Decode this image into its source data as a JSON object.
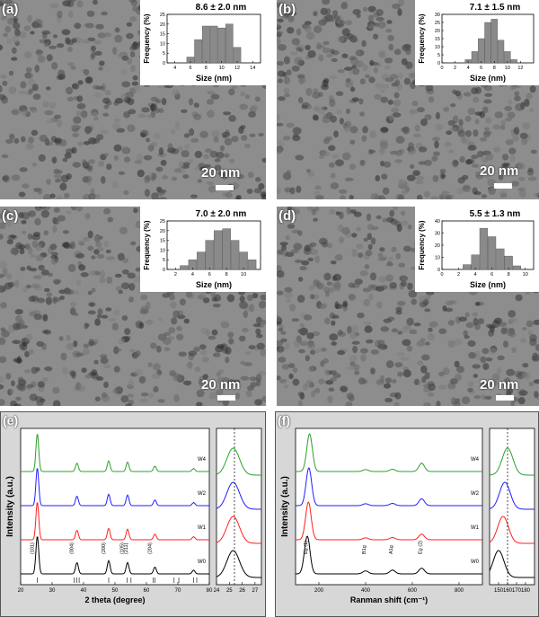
{
  "panels": [
    {
      "label": "(a)",
      "scale": "20 nm",
      "mean_label": "8.6 ± 2.0 nm"
    },
    {
      "label": "(b)",
      "scale": "20 nm",
      "mean_label": "7.1 ± 1.5 nm"
    },
    {
      "label": "(c)",
      "scale": "20 nm",
      "mean_label": "7.0 ± 2.0 nm"
    },
    {
      "label": "(d)",
      "scale": "20 nm",
      "mean_label": "5.5 ± 1.3 nm"
    },
    {
      "label": "(e)"
    },
    {
      "label": "(f)"
    }
  ],
  "chart_data": [
    {
      "type": "bar",
      "panel": "(a)",
      "title": "8.6 ± 2.0 nm",
      "xlabel": "Size (nm)",
      "ylabel": "Frequency (%)",
      "x": [
        6,
        7,
        8,
        9,
        10,
        11,
        12
      ],
      "values": [
        3,
        12,
        19,
        19,
        18,
        20,
        8
      ],
      "xlim": [
        3,
        15
      ],
      "ylim": [
        0,
        25
      ],
      "xticks": [
        "4",
        "6",
        "8",
        "10",
        "12",
        "14"
      ],
      "yticks": [
        "0",
        "5",
        "10",
        "15",
        "20",
        "25"
      ]
    },
    {
      "type": "bar",
      "panel": "(b)",
      "title": "7.1 ± 1.5 nm",
      "xlabel": "Size (nm)",
      "ylabel": "Frequency (%)",
      "x": [
        4,
        5,
        6,
        7,
        8,
        9,
        10,
        11
      ],
      "values": [
        2,
        7,
        15,
        25,
        27,
        14,
        7,
        2
      ],
      "xlim": [
        0,
        14
      ],
      "ylim": [
        0,
        30
      ],
      "xticks": [
        "0",
        "2",
        "4",
        "6",
        "8",
        "10",
        "12"
      ],
      "yticks": [
        "0",
        "5",
        "10",
        "15",
        "20",
        "25",
        "30"
      ]
    },
    {
      "type": "bar",
      "panel": "(c)",
      "title": "7.0 ± 2.0 nm",
      "xlabel": "Size (nm)",
      "ylabel": "Frequency (%)",
      "x": [
        3,
        4,
        5,
        6,
        7,
        8,
        9,
        10,
        11
      ],
      "values": [
        2,
        5,
        9,
        15,
        20,
        21,
        15,
        9,
        5
      ],
      "xlim": [
        1,
        12
      ],
      "ylim": [
        0,
        25
      ],
      "xticks": [
        "2",
        "4",
        "6",
        "8",
        "10"
      ],
      "yticks": [
        "0",
        "5",
        "10",
        "15",
        "20",
        "25"
      ]
    },
    {
      "type": "bar",
      "panel": "(d)",
      "title": "5.5 ± 1.3 nm",
      "xlabel": "Size (nm)",
      "ylabel": "Frequency (%)",
      "x": [
        3,
        4,
        5,
        6,
        7,
        8,
        9
      ],
      "values": [
        4,
        12,
        34,
        27,
        17,
        11,
        3
      ],
      "xlim": [
        0,
        11
      ],
      "ylim": [
        0,
        40
      ],
      "xticks": [
        "0",
        "2",
        "4",
        "6",
        "8",
        "10"
      ],
      "yticks": [
        "0",
        "10",
        "20",
        "30",
        "40"
      ]
    },
    {
      "type": "line",
      "panel": "(e)",
      "xlabel": "2 theta (degree)",
      "ylabel": "Intensity (a.u.)",
      "xlim": [
        20,
        80
      ],
      "xticks": [
        "20",
        "30",
        "40",
        "50",
        "60",
        "70",
        "80"
      ],
      "series": [
        {
          "name": "W4",
          "color": "#2ca02c",
          "offset": 3,
          "peaks": [
            [
              25.3,
              1.0
            ],
            [
              37.9,
              0.22
            ],
            [
              48.0,
              0.28
            ],
            [
              54.0,
              0.25
            ],
            [
              62.7,
              0.14
            ],
            [
              75.0,
              0.08
            ]
          ]
        },
        {
          "name": "W2",
          "color": "#1f1fff",
          "offset": 2,
          "peaks": [
            [
              25.3,
              1.0
            ],
            [
              37.9,
              0.25
            ],
            [
              48.0,
              0.3
            ],
            [
              54.0,
              0.28
            ],
            [
              62.7,
              0.15
            ],
            [
              75.0,
              0.08
            ]
          ]
        },
        {
          "name": "W1",
          "color": "#ff1f1f",
          "offset": 1,
          "peaks": [
            [
              25.3,
              1.0
            ],
            [
              37.9,
              0.25
            ],
            [
              48.0,
              0.3
            ],
            [
              54.0,
              0.28
            ],
            [
              62.7,
              0.15
            ],
            [
              75.0,
              0.08
            ]
          ]
        },
        {
          "name": "W0",
          "color": "#000000",
          "offset": 0,
          "peaks": [
            [
              25.3,
              1.0
            ],
            [
              37.9,
              0.3
            ],
            [
              48.0,
              0.35
            ],
            [
              54.0,
              0.3
            ],
            [
              62.7,
              0.18
            ],
            [
              75.0,
              0.1
            ]
          ]
        }
      ],
      "annotations": [
        "(101)",
        "(004)",
        "(200)",
        "(105)",
        "(211)",
        "(204)"
      ],
      "reference_lines": [
        25.3,
        37.0,
        37.8,
        38.6,
        48.0,
        53.9,
        55.1,
        62.1,
        62.7,
        68.8,
        70.3,
        75.0,
        76.0
      ],
      "inset": {
        "xlim": [
          24,
          27.5
        ],
        "xticks": [
          "24",
          "25",
          "26",
          "27"
        ],
        "dashed_x": 25.4
      }
    },
    {
      "type": "line",
      "panel": "(f)",
      "xlabel": "Ranman shift (cm⁻¹)",
      "ylabel": "Intensity (a.u.)",
      "xlim": [
        100,
        900
      ],
      "xticks": [
        "200",
        "400",
        "600",
        "800"
      ],
      "series": [
        {
          "name": "W4",
          "color": "#2ca02c",
          "offset": 3,
          "peaks": [
            [
              160,
              1.0
            ],
            [
              400,
              0.05
            ],
            [
              515,
              0.06
            ],
            [
              640,
              0.22
            ]
          ]
        },
        {
          "name": "W2",
          "color": "#1f1fff",
          "offset": 2,
          "peaks": [
            [
              157,
              1.0
            ],
            [
              400,
              0.05
            ],
            [
              515,
              0.06
            ],
            [
              640,
              0.18
            ]
          ]
        },
        {
          "name": "W1",
          "color": "#ff1f1f",
          "offset": 1,
          "peaks": [
            [
              155,
              1.0
            ],
            [
              400,
              0.05
            ],
            [
              515,
              0.06
            ],
            [
              640,
              0.15
            ]
          ]
        },
        {
          "name": "W0",
          "color": "#000000",
          "offset": 0,
          "peaks": [
            [
              150,
              1.0
            ],
            [
              400,
              0.08
            ],
            [
              515,
              0.1
            ],
            [
              640,
              0.15
            ]
          ]
        }
      ],
      "annotations": [
        "Eg (1)",
        "B1g",
        "A1g",
        "Eg (2)"
      ],
      "inset": {
        "xlim": [
          140,
          190
        ],
        "xticks": [
          "150",
          "160",
          "170",
          "180"
        ],
        "dashed_x": 160
      }
    }
  ]
}
